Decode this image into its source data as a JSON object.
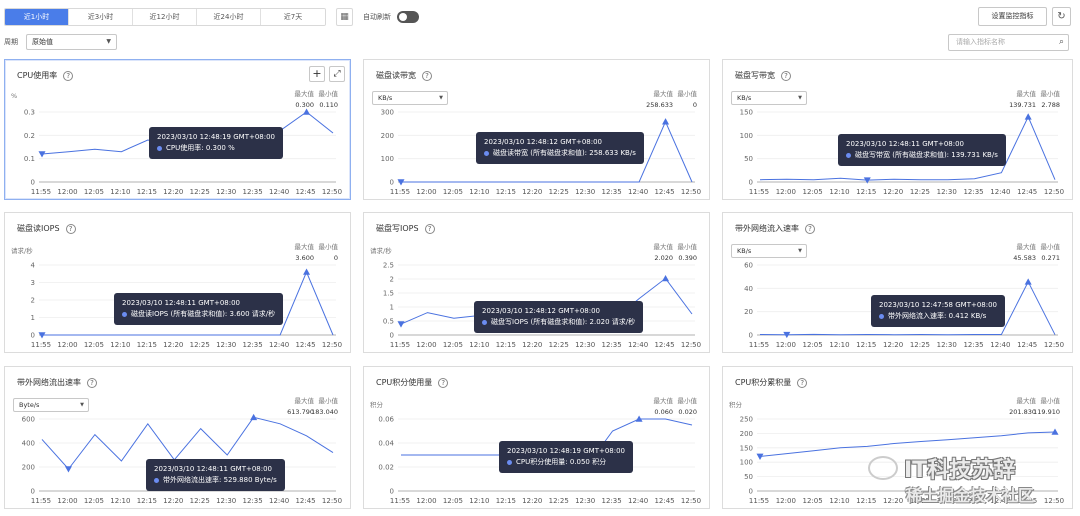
{
  "toolbar": {
    "tabs": [
      "近1小时",
      "近3小时",
      "近12小时",
      "近24小时",
      "近7天"
    ],
    "active_tab": 0,
    "calendar_icon": "calendar-icon",
    "auto_refresh_label": "自动刷新",
    "auto_refresh_on": false,
    "settings_button": "设置监控指标",
    "refresh_icon": "refresh-icon"
  },
  "filter": {
    "period_label": "周期",
    "period_value": "原始值",
    "search_placeholder": "请输入指标名称",
    "search_icon": "search-icon"
  },
  "colors": {
    "accent": "#4a7de9",
    "line": "#4a72e0",
    "tooltip_bg": "#2c3148"
  },
  "x_ticks": [
    "11:55",
    "12:00",
    "12:05",
    "12:10",
    "12:15",
    "12:20",
    "12:25",
    "12:30",
    "12:35",
    "12:40",
    "12:45",
    "12:50"
  ],
  "max_label": "最大值",
  "min_label": "最小值",
  "panels": [
    {
      "id": "cpu-usage",
      "title": "CPU使用率",
      "unit": "%",
      "unit_is_select": false,
      "max": "0.300",
      "min": "0.110",
      "selected": true,
      "has_tools": true,
      "y_ticks": [
        "0.3",
        "0.2",
        "0.1",
        "0"
      ],
      "tooltip": {
        "time": "2023/03/10 12:48:19 GMT+08:00",
        "text": "CPU使用率: 0.300 %"
      }
    },
    {
      "id": "disk-read-bw",
      "title": "磁盘读带宽",
      "unit": "KB/s",
      "unit_is_select": true,
      "max": "258.633",
      "min": "0",
      "y_ticks": [
        "300",
        "200",
        "100",
        "0"
      ],
      "tooltip": {
        "time": "2023/03/10 12:48:12 GMT+08:00",
        "text": "磁盘读带宽 (所有磁盘求和值): 258.633 KB/s"
      }
    },
    {
      "id": "disk-write-bw",
      "title": "磁盘写带宽",
      "unit": "KB/s",
      "unit_is_select": true,
      "max": "139.731",
      "min": "2.788",
      "y_ticks": [
        "150",
        "100",
        "50",
        "0"
      ],
      "tooltip": {
        "time": "2023/03/10 12:48:11 GMT+08:00",
        "text": "磁盘写带宽 (所有磁盘求和值): 139.731 KB/s"
      }
    },
    {
      "id": "disk-read-iops",
      "title": "磁盘读IOPS",
      "unit": "请求/秒",
      "unit_is_select": false,
      "max": "3.600",
      "min": "0",
      "y_ticks": [
        "4",
        "3",
        "2",
        "1",
        "0"
      ],
      "tooltip": {
        "time": "2023/03/10 12:48:11 GMT+08:00",
        "text": "磁盘读IOPS (所有磁盘求和值): 3.600 请求/秒"
      }
    },
    {
      "id": "disk-write-iops",
      "title": "磁盘写IOPS",
      "unit": "请求/秒",
      "unit_is_select": false,
      "max": "2.020",
      "min": "0.390",
      "y_ticks": [
        "2.5",
        "2",
        "1.5",
        "1",
        "0.5",
        "0"
      ],
      "tooltip": {
        "time": "2023/03/10 12:48:12 GMT+08:00",
        "text": "磁盘写IOPS (所有磁盘求和值): 2.020 请求/秒"
      }
    },
    {
      "id": "net-in-rate",
      "title": "带外网络流入速率",
      "unit": "KB/s",
      "unit_is_select": true,
      "max": "45.583",
      "min": "0.271",
      "y_ticks": [
        "60",
        "40",
        "20",
        "0"
      ],
      "tooltip": {
        "time": "2023/03/10 12:47:58 GMT+08:00",
        "text": "带外网络流入速率: 0.412 KB/s"
      }
    },
    {
      "id": "net-out-rate",
      "title": "带外网络流出速率",
      "unit": "Byte/s",
      "unit_is_select": true,
      "max": "613.790",
      "min": "183.040",
      "y_ticks": [
        "600",
        "400",
        "200",
        "0"
      ],
      "tooltip": {
        "time": "2023/03/10 12:48:11 GMT+08:00",
        "text": "带外网络流出速率: 529.880 Byte/s"
      }
    },
    {
      "id": "cpu-credit-usage",
      "title": "CPU积分使用量",
      "unit": "积分",
      "unit_is_select": false,
      "max": "0.060",
      "min": "0.020",
      "y_ticks": [
        "0.06",
        "0.04",
        "0.02",
        "0"
      ],
      "tooltip": {
        "time": "2023/03/10 12:48:19 GMT+08:00",
        "text": "CPU积分使用量: 0.050 积分"
      }
    },
    {
      "id": "cpu-credit-balance",
      "title": "CPU积分累积量",
      "unit": "积分",
      "unit_is_select": false,
      "max": "201.830",
      "min": "119.910",
      "y_ticks": [
        "250",
        "200",
        "150",
        "100",
        "50",
        "0"
      ],
      "tooltip": null
    }
  ],
  "chart_data": [
    {
      "type": "line",
      "title": "CPU使用率",
      "ylabel": "%",
      "ylim": [
        0,
        0.35
      ],
      "x": [
        "11:56",
        "12:01",
        "12:07",
        "12:12",
        "12:15",
        "12:21",
        "12:27",
        "12:32",
        "12:38",
        "12:43",
        "12:48",
        "12:52"
      ],
      "values": [
        0.12,
        0.13,
        0.14,
        0.13,
        0.18,
        0.16,
        0.17,
        0.14,
        0.2,
        0.22,
        0.3,
        0.21
      ]
    },
    {
      "type": "line",
      "title": "磁盘读带宽",
      "ylabel": "KB/s",
      "ylim": [
        0,
        300
      ],
      "x": [
        "11:56",
        "12:01",
        "12:07",
        "12:12",
        "12:17",
        "12:22",
        "12:27",
        "12:32",
        "12:38",
        "12:43",
        "12:48",
        "12:52"
      ],
      "values": [
        0,
        0,
        0,
        0,
        0,
        0,
        0,
        0,
        0,
        0,
        258.633,
        0
      ]
    },
    {
      "type": "line",
      "title": "磁盘写带宽",
      "ylabel": "KB/s",
      "ylim": [
        0,
        150
      ],
      "x": [
        "11:56",
        "12:01",
        "12:07",
        "12:12",
        "12:17",
        "12:22",
        "12:27",
        "12:32",
        "12:38",
        "12:43",
        "12:48",
        "12:52"
      ],
      "values": [
        5,
        6,
        5,
        8,
        4,
        6,
        5,
        5,
        7,
        20,
        139.731,
        5
      ]
    },
    {
      "type": "line",
      "title": "磁盘读IOPS",
      "ylabel": "请求/秒",
      "ylim": [
        0,
        4
      ],
      "x": [
        "11:56",
        "12:01",
        "12:07",
        "12:12",
        "12:17",
        "12:22",
        "12:27",
        "12:32",
        "12:38",
        "12:43",
        "12:48",
        "12:52"
      ],
      "values": [
        0,
        0,
        0,
        0,
        0,
        0,
        0,
        0,
        0,
        0,
        3.6,
        0
      ]
    },
    {
      "type": "line",
      "title": "磁盘写IOPS",
      "ylabel": "请求/秒",
      "ylim": [
        0,
        2.5
      ],
      "x": [
        "11:56",
        "12:01",
        "12:07",
        "12:12",
        "12:17",
        "12:22",
        "12:27",
        "12:32",
        "12:38",
        "12:43",
        "12:48",
        "12:52"
      ],
      "values": [
        0.39,
        0.8,
        0.6,
        0.7,
        0.5,
        0.6,
        0.6,
        0.6,
        0.5,
        1.3,
        2.02,
        0.75
      ]
    },
    {
      "type": "line",
      "title": "带外网络流入速率",
      "ylabel": "KB/s",
      "ylim": [
        0,
        60
      ],
      "x": [
        "11:56",
        "12:01",
        "12:07",
        "12:12",
        "12:17",
        "12:22",
        "12:27",
        "12:32",
        "12:38",
        "12:43",
        "12:48",
        "12:52"
      ],
      "values": [
        0.4,
        0.3,
        0.5,
        0.3,
        0.4,
        0.3,
        0.4,
        0.3,
        0.4,
        0.412,
        45.583,
        0.3
      ]
    },
    {
      "type": "line",
      "title": "带外网络流出速率",
      "ylabel": "Byte/s",
      "ylim": [
        0,
        700
      ],
      "x": [
        "11:56",
        "12:01",
        "12:07",
        "12:12",
        "12:17",
        "12:22",
        "12:27",
        "12:32",
        "12:38",
        "12:43",
        "12:48",
        "12:52"
      ],
      "values": [
        430,
        183.04,
        470,
        250,
        560,
        260,
        520,
        300,
        613.79,
        560,
        460,
        320
      ]
    },
    {
      "type": "line",
      "title": "CPU积分使用量",
      "ylabel": "积分",
      "ylim": [
        0,
        0.07
      ],
      "x": [
        "11:56",
        "12:01",
        "12:07",
        "12:12",
        "12:17",
        "12:22",
        "12:27",
        "12:32",
        "12:38",
        "12:43",
        "12:48",
        "12:52"
      ],
      "values": [
        0.03,
        0.03,
        0.03,
        0.03,
        0.03,
        0.03,
        0.02,
        0.02,
        0.05,
        0.06,
        0.06,
        0.055
      ]
    },
    {
      "type": "line",
      "title": "CPU积分累积量",
      "ylabel": "积分",
      "ylim": [
        0,
        250
      ],
      "x": [
        "11:56",
        "12:01",
        "12:07",
        "12:12",
        "12:17",
        "12:22",
        "12:27",
        "12:32",
        "12:38",
        "12:43",
        "12:48",
        "12:52"
      ],
      "values": [
        119.91,
        130,
        140,
        150,
        155,
        165,
        172,
        178,
        185,
        192,
        201.83,
        205
      ]
    }
  ]
}
